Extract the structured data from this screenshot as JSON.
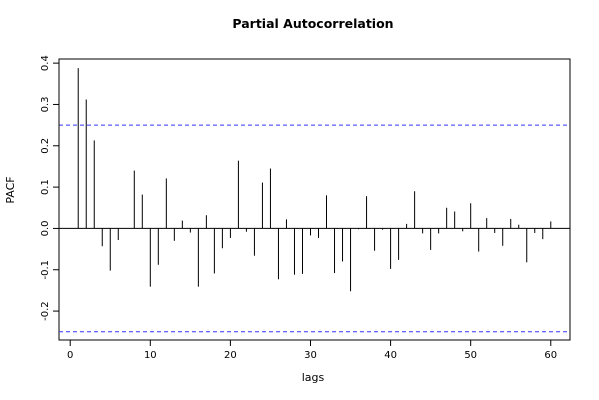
{
  "chart_data": {
    "type": "bar",
    "title": "Partial Autocorrelation",
    "xlabel": "lags",
    "ylabel": "PACF",
    "xlim": [
      -1.4,
      62.4
    ],
    "ylim": [
      -0.27,
      0.41
    ],
    "x_ticks": [
      0,
      10,
      20,
      30,
      40,
      50,
      60
    ],
    "y_ticks": [
      -0.2,
      -0.1,
      0.0,
      0.1,
      0.2,
      0.3,
      0.4
    ],
    "y_tick_labels": [
      "-0.2",
      "-0.1",
      "0.0",
      "0.1",
      "0.2",
      "0.3",
      "0.4"
    ],
    "x_tick_labels": [
      "0",
      "10",
      "20",
      "30",
      "40",
      "50",
      "60"
    ],
    "confidence_bounds": [
      0.25,
      -0.25
    ],
    "bound_color": "#3333ff",
    "lags": [
      1,
      2,
      3,
      4,
      5,
      6,
      7,
      8,
      9,
      10,
      11,
      12,
      13,
      14,
      15,
      16,
      17,
      18,
      19,
      20,
      21,
      22,
      23,
      24,
      25,
      26,
      27,
      28,
      29,
      30,
      31,
      32,
      33,
      34,
      35,
      36,
      37,
      38,
      39,
      40,
      41,
      42,
      43,
      44,
      45,
      46,
      47,
      48,
      49,
      50,
      51,
      52,
      53,
      54,
      55,
      56,
      57,
      58,
      59,
      60
    ],
    "values": [
      0.388,
      0.312,
      0.213,
      -0.043,
      -0.102,
      -0.028,
      0.0,
      0.14,
      0.082,
      -0.141,
      -0.088,
      0.121,
      -0.03,
      0.019,
      -0.01,
      -0.141,
      0.032,
      -0.109,
      -0.048,
      -0.023,
      0.164,
      -0.008,
      -0.066,
      0.111,
      0.145,
      -0.123,
      0.022,
      -0.112,
      -0.11,
      -0.017,
      -0.023,
      0.08,
      -0.108,
      -0.08,
      -0.152,
      -0.002,
      0.078,
      -0.054,
      -0.003,
      -0.098,
      -0.076,
      0.011,
      0.09,
      -0.012,
      -0.052,
      -0.012,
      0.05,
      0.041,
      -0.007,
      0.061,
      -0.056,
      0.025,
      -0.011,
      -0.042,
      0.023,
      0.009,
      -0.082,
      -0.011,
      -0.026,
      0.017
    ]
  }
}
